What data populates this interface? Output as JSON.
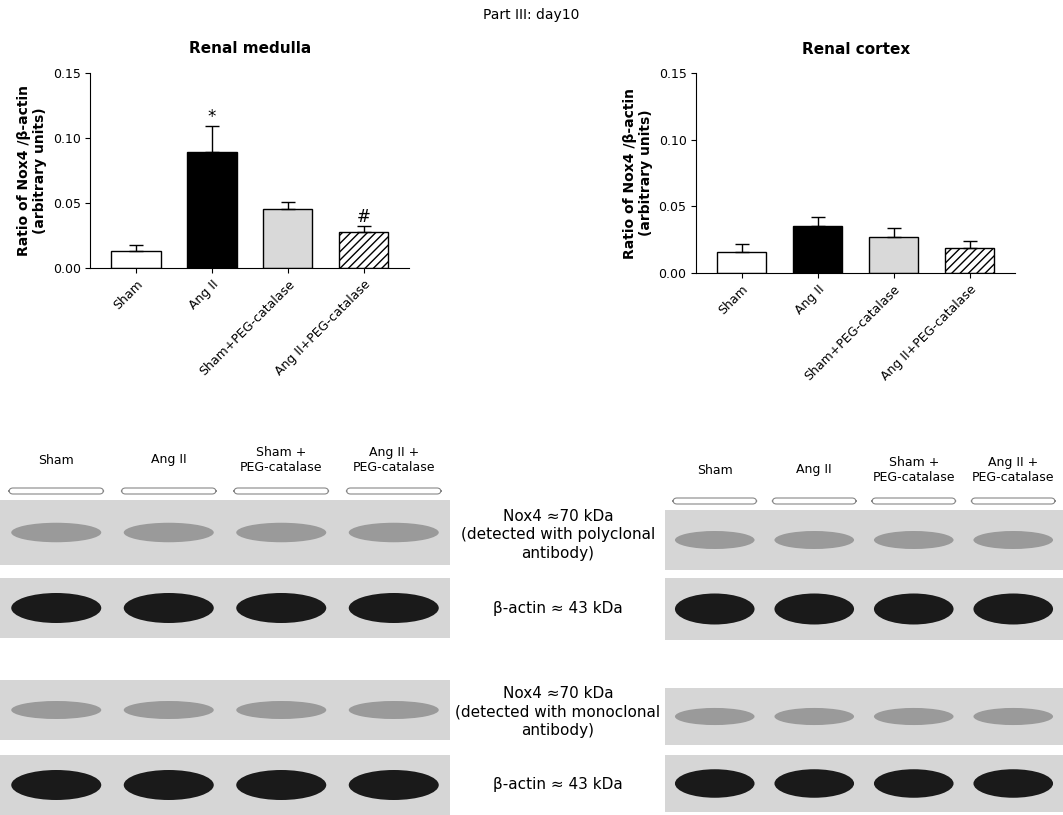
{
  "title": "Part III: day10",
  "chart_data": [
    {
      "type": "bar",
      "title": "Renal medulla",
      "ylabel": "Ratio of Nox4 /β-actin\n(arbitrary units)",
      "categories": [
        "Sham",
        "Ang II",
        "Sham+PEG-catalase",
        "Ang II+PEG-catalase"
      ],
      "values": [
        0.013,
        0.089,
        0.045,
        0.028
      ],
      "errors": [
        0.005,
        0.02,
        0.006,
        0.004
      ],
      "annotations": [
        null,
        "*",
        null,
        "#"
      ],
      "colors": [
        "#ffffff",
        "#000000",
        "#d9d9d9",
        "#ffffff"
      ],
      "ylim": [
        0,
        0.15
      ],
      "yticks": [
        {
          "value": 0,
          "label": "0.00"
        },
        {
          "value": 0.05,
          "label": "0.05"
        },
        {
          "value": 0.1,
          "label": "0.10"
        },
        {
          "value": 0.15,
          "label": "0.15"
        }
      ]
    },
    {
      "type": "bar",
      "title": "Renal cortex",
      "ylabel": "Ratio of Nox4 /β-actin\n(arbitrary units)",
      "categories": [
        "Sham",
        "Ang II",
        "Sham+PEG-catalase",
        "Ang II+PEG-catalase"
      ],
      "values": [
        0.016,
        0.035,
        0.027,
        0.019
      ],
      "errors": [
        0.006,
        0.007,
        0.007,
        0.005
      ],
      "annotations": [
        null,
        null,
        null,
        null
      ],
      "colors": [
        "#ffffff",
        "#000000",
        "#d9d9d9",
        "#ffffff"
      ],
      "ylim": [
        0,
        0.15
      ],
      "yticks": [
        {
          "value": 0,
          "label": "0.00"
        },
        {
          "value": 0.05,
          "label": "0.05"
        },
        {
          "value": 0.1,
          "label": "0.10"
        },
        {
          "value": 0.15,
          "label": "0.15"
        }
      ]
    }
  ],
  "blots": {
    "lane_groups": [
      "Sham",
      "Ang II",
      "Sham +\nPEG-catalase",
      "Ang II +\nPEG-catalase"
    ],
    "row_labels": [
      "Nox4 ≈70 kDa\n(detected with polyclonal\nantibody)",
      "β-actin ≈ 43 kDa",
      "Nox4 ≈70 kDa\n(detected with monoclonal\nantibody)",
      "β-actin ≈ 43 kDa"
    ]
  }
}
